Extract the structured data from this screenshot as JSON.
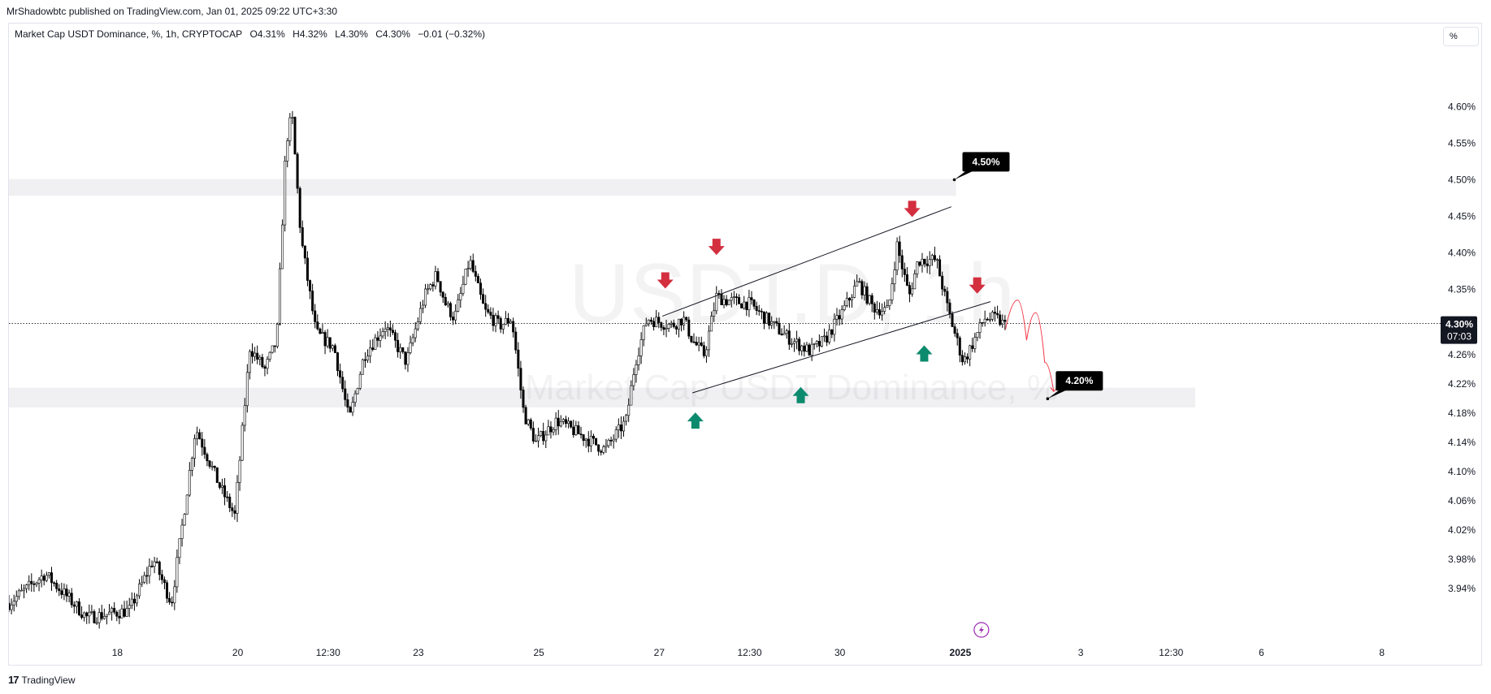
{
  "publisher": "MrShadowbtc published on TradingView.com, Jan 01, 2025 09:22 UTC+3:30",
  "legend": {
    "symbol": "Market Cap USDT Dominance, %, 1h, CRYPTOCAP",
    "open": "O4.31%",
    "high": "H4.32%",
    "low": "L4.30%",
    "close": "C4.30%",
    "change": "−0.01 (−0.32%)"
  },
  "scale_button": "%",
  "footer_brand": "TradingView",
  "footer_logo_mark": "17",
  "colors": {
    "candle": "#000000",
    "zone": "#f0f0f2",
    "arrow_down": "#d32f3f",
    "arrow_up": "#0b8a6e",
    "projection": "#f23645",
    "price_tag_bg": "#000000",
    "lightning": "#9c27b0"
  },
  "chart_data": {
    "type": "candlestick",
    "symbol": "Market Cap USDT Dominance, %",
    "interval": "1h",
    "ylim": [
      3.91,
      4.635
    ],
    "y_ticks": [
      "4.60%",
      "4.55%",
      "4.50%",
      "4.45%",
      "4.40%",
      "4.35%",
      "4.26%",
      "4.22%",
      "4.18%",
      "4.14%",
      "4.10%",
      "4.06%",
      "4.02%",
      "3.98%",
      "3.94%"
    ],
    "y_tick_values": [
      4.6,
      4.55,
      4.5,
      4.45,
      4.4,
      4.35,
      4.26,
      4.22,
      4.18,
      4.14,
      4.1,
      4.06,
      4.02,
      3.98,
      3.94
    ],
    "x_ticks": [
      "18",
      "20",
      "12:30",
      "23",
      "25",
      "27",
      "12:30",
      "30",
      "2025",
      "3",
      "12:30",
      "6",
      "8"
    ],
    "x_tick_bold": "2025",
    "x_tick_days": [
      18,
      20,
      21.5,
      23,
      25,
      27,
      28.5,
      30,
      32,
      34,
      35.5,
      37,
      39
    ],
    "xlim_days": [
      16.2,
      40.3
    ],
    "last_price": {
      "label": "4.30%",
      "countdown": "07:03",
      "value": 4.303
    },
    "price_path": [
      [
        16.2,
        3.92
      ],
      [
        16.8,
        3.96
      ],
      [
        17.5,
        3.9
      ],
      [
        18.2,
        3.91
      ],
      [
        18.6,
        3.98
      ],
      [
        18.9,
        3.92
      ],
      [
        19.3,
        4.16
      ],
      [
        19.7,
        4.08
      ],
      [
        19.95,
        4.04
      ],
      [
        20.2,
        4.27
      ],
      [
        20.45,
        4.24
      ],
      [
        20.65,
        4.28
      ],
      [
        20.8,
        4.55
      ],
      [
        20.9,
        4.59
      ],
      [
        21.05,
        4.42
      ],
      [
        21.3,
        4.29
      ],
      [
        21.6,
        4.27
      ],
      [
        21.85,
        4.17
      ],
      [
        22.1,
        4.26
      ],
      [
        22.45,
        4.3
      ],
      [
        22.8,
        4.25
      ],
      [
        23.1,
        4.34
      ],
      [
        23.3,
        4.37
      ],
      [
        23.45,
        4.33
      ],
      [
        23.6,
        4.31
      ],
      [
        23.85,
        4.39
      ],
      [
        24.1,
        4.32
      ],
      [
        24.35,
        4.3
      ],
      [
        24.55,
        4.31
      ],
      [
        24.75,
        4.18
      ],
      [
        24.95,
        4.14
      ],
      [
        25.3,
        4.17
      ],
      [
        25.7,
        4.15
      ],
      [
        26.1,
        4.13
      ],
      [
        26.45,
        4.17
      ],
      [
        26.6,
        4.25
      ],
      [
        26.8,
        4.31
      ],
      [
        27.2,
        4.3
      ],
      [
        27.4,
        4.31
      ],
      [
        27.55,
        4.28
      ],
      [
        27.75,
        4.26
      ],
      [
        27.95,
        4.34
      ],
      [
        28.1,
        4.335
      ],
      [
        28.5,
        4.33
      ],
      [
        28.9,
        4.3
      ],
      [
        29.2,
        4.28
      ],
      [
        29.5,
        4.265
      ],
      [
        29.75,
        4.28
      ],
      [
        30.05,
        4.32
      ],
      [
        30.3,
        4.36
      ],
      [
        30.55,
        4.325
      ],
      [
        30.8,
        4.32
      ],
      [
        30.95,
        4.41
      ],
      [
        31.15,
        4.34
      ],
      [
        31.3,
        4.39
      ],
      [
        31.6,
        4.39
      ],
      [
        31.8,
        4.32
      ],
      [
        32.05,
        4.25
      ],
      [
        32.2,
        4.275
      ],
      [
        32.4,
        4.31
      ],
      [
        32.6,
        4.31
      ],
      [
        32.75,
        4.3
      ]
    ],
    "channel": {
      "upper": [
        [
          27.05,
          4.313
        ],
        [
          31.85,
          4.463
        ]
      ],
      "lower": [
        [
          27.55,
          4.208
        ],
        [
          32.5,
          4.333
        ]
      ]
    },
    "zones": [
      {
        "from_day": 16.2,
        "to_day": 31.93,
        "low": 4.478,
        "high": 4.501
      },
      {
        "from_day": 16.2,
        "to_day": 35.9,
        "low": 4.188,
        "high": 4.215
      }
    ],
    "price_tags": [
      {
        "label": "4.50%",
        "day": 31.9,
        "value": 4.5
      },
      {
        "label": "4.20%",
        "day": 33.45,
        "value": 4.2
      }
    ],
    "arrows_down": [
      [
        27.1,
        4.362
      ],
      [
        27.95,
        4.408
      ],
      [
        31.2,
        4.46
      ],
      [
        32.28,
        4.355
      ]
    ],
    "arrows_up": [
      [
        27.6,
        4.17
      ],
      [
        29.35,
        4.205
      ],
      [
        31.4,
        4.262
      ]
    ],
    "projection": [
      [
        32.75,
        4.295
      ],
      [
        32.95,
        4.335
      ],
      [
        33.1,
        4.28
      ],
      [
        33.25,
        4.318
      ],
      [
        33.4,
        4.25
      ],
      [
        33.55,
        4.21
      ]
    ],
    "watermark_lines": [
      "USDT.D, 1h",
      "Market Cap USDT Dominance, %"
    ],
    "lightning_day": 32.35
  }
}
